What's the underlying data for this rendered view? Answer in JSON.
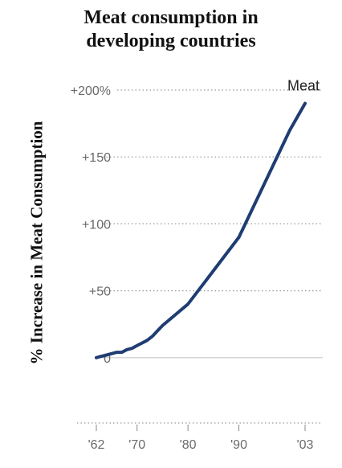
{
  "chart_data": {
    "type": "line",
    "title": [
      "Meat consumption in",
      "developing countries"
    ],
    "ylabel": "% Increase in Meat Consumption",
    "xlabel": "",
    "y_ticks": [
      {
        "value": 200,
        "label": "+200%"
      },
      {
        "value": 150,
        "label": "+150"
      },
      {
        "value": 100,
        "label": "+100"
      },
      {
        "value": 50,
        "label": "+50"
      },
      {
        "value": 0,
        "label": "0"
      }
    ],
    "x_ticks": [
      {
        "value": 1962,
        "label": "'62"
      },
      {
        "value": 1970,
        "label": "'70"
      },
      {
        "value": 1980,
        "label": "'80"
      },
      {
        "value": 1990,
        "label": "'90"
      },
      {
        "value": 2003,
        "label": "'03"
      }
    ],
    "xlim": [
      1962,
      2003
    ],
    "ylim": [
      -50,
      200
    ],
    "grid": true,
    "series": [
      {
        "name": "Meat",
        "color": "#1f3d73",
        "x": [
          1962,
          1963,
          1964,
          1965,
          1966,
          1967,
          1968,
          1969,
          1970,
          1971,
          1972,
          1973,
          1974,
          1975,
          1980,
          1985,
          1990,
          1995,
          2000,
          2003
        ],
        "y": [
          0,
          1,
          2,
          3,
          4,
          4,
          6,
          7,
          9,
          11,
          13,
          16,
          20,
          24,
          40,
          65,
          90,
          130,
          170,
          190
        ]
      }
    ]
  }
}
